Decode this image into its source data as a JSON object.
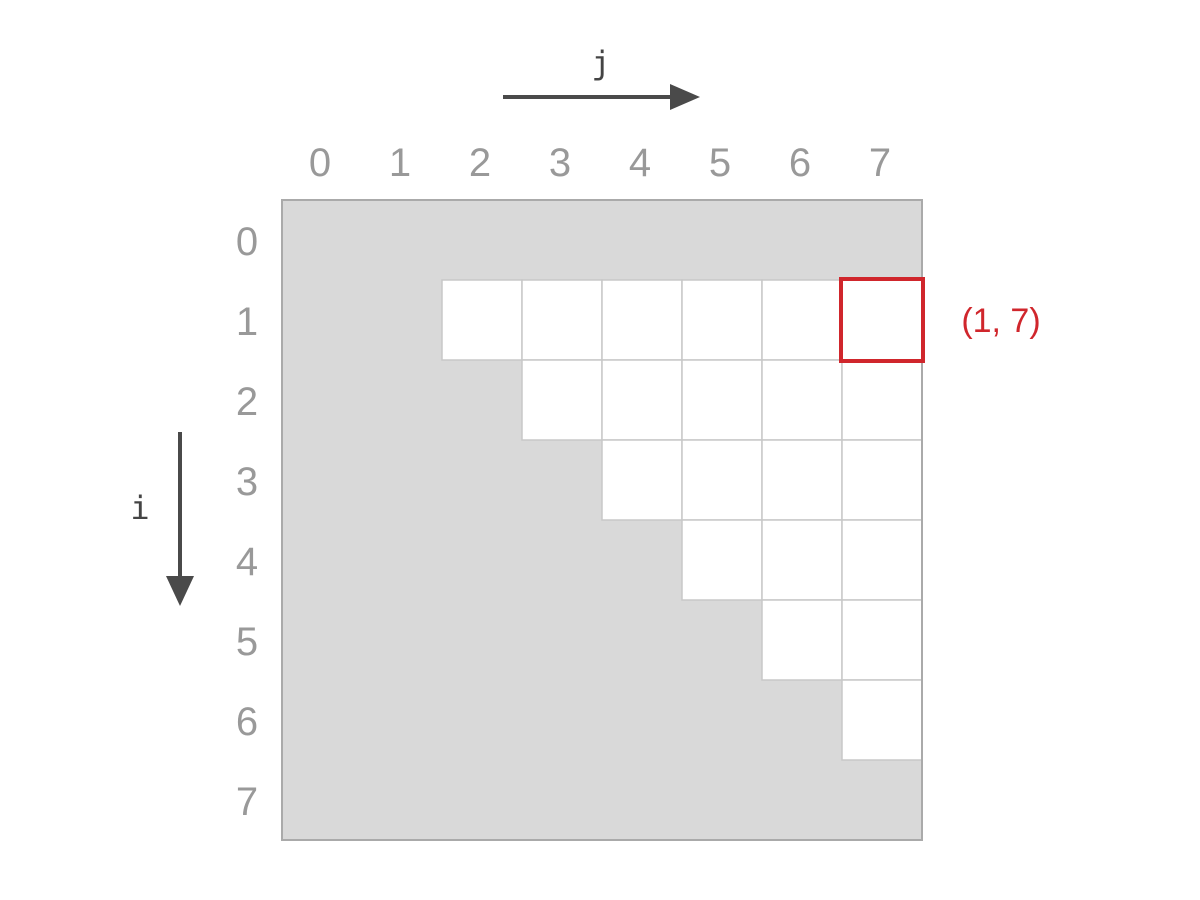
{
  "axes": {
    "j_label": "j",
    "i_label": "i"
  },
  "col_indices": [
    "0",
    "1",
    "2",
    "3",
    "4",
    "5",
    "6",
    "7"
  ],
  "row_indices": [
    "0",
    "1",
    "2",
    "3",
    "4",
    "5",
    "6",
    "7"
  ],
  "grid": {
    "size": 8,
    "filled_rule": "cells with j > i are white (upper triangle, excluding row 0), all others gray",
    "white_cells": [
      [
        1,
        2
      ],
      [
        1,
        3
      ],
      [
        1,
        4
      ],
      [
        1,
        5
      ],
      [
        1,
        6
      ],
      [
        1,
        7
      ],
      [
        2,
        3
      ],
      [
        2,
        4
      ],
      [
        2,
        5
      ],
      [
        2,
        6
      ],
      [
        2,
        7
      ],
      [
        3,
        4
      ],
      [
        3,
        5
      ],
      [
        3,
        6
      ],
      [
        3,
        7
      ],
      [
        4,
        5
      ],
      [
        4,
        6
      ],
      [
        4,
        7
      ],
      [
        5,
        6
      ],
      [
        5,
        7
      ],
      [
        6,
        7
      ]
    ]
  },
  "highlight": {
    "row": 1,
    "col": 7,
    "label": "(1, 7)"
  },
  "colors": {
    "gray_fill": "#d9d9d9",
    "white_fill": "#ffffff",
    "cell_border": "#c8c8c8",
    "outer_border": "#aaaaaa",
    "index_text": "#999999",
    "arrow": "#4a4a4a",
    "axis_name": "#444444",
    "highlight": "#d0262c"
  }
}
